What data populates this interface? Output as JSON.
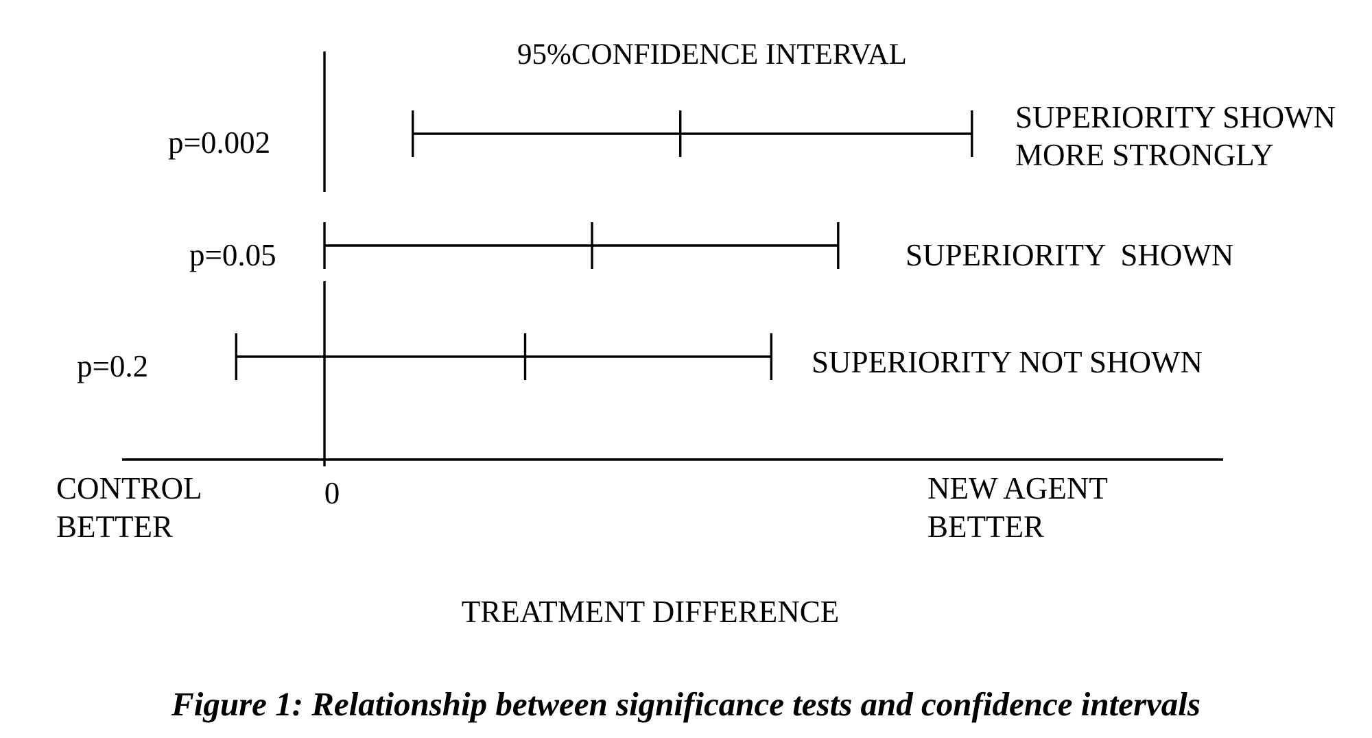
{
  "figure": {
    "header": "95%CONFIDENCE INTERVAL",
    "axis": {
      "zero_label": "0",
      "left_label": [
        "CONTROL",
        "BETTER"
      ],
      "right_label": [
        "NEW AGENT",
        "BETTER"
      ],
      "title": "TREATMENT DIFFERENCE"
    },
    "intervals": [
      {
        "p_label": "p=0.002",
        "lower": 0.33,
        "estimate": 1.33,
        "upper": 2.42,
        "conclusion": [
          "SUPERIORITY SHOWN",
          "MORE STRONGLY"
        ]
      },
      {
        "p_label": "p=0.05",
        "lower": 0.0,
        "estimate": 1.0,
        "upper": 1.92,
        "conclusion": [
          "SUPERIORITY  SHOWN"
        ]
      },
      {
        "p_label": "p=0.2",
        "lower": -0.33,
        "estimate": 0.75,
        "upper": 1.67,
        "conclusion": [
          "SUPERIORITY NOT SHOWN"
        ]
      }
    ],
    "caption": "Figure 1:  Relationship between significance tests and confidence intervals"
  }
}
